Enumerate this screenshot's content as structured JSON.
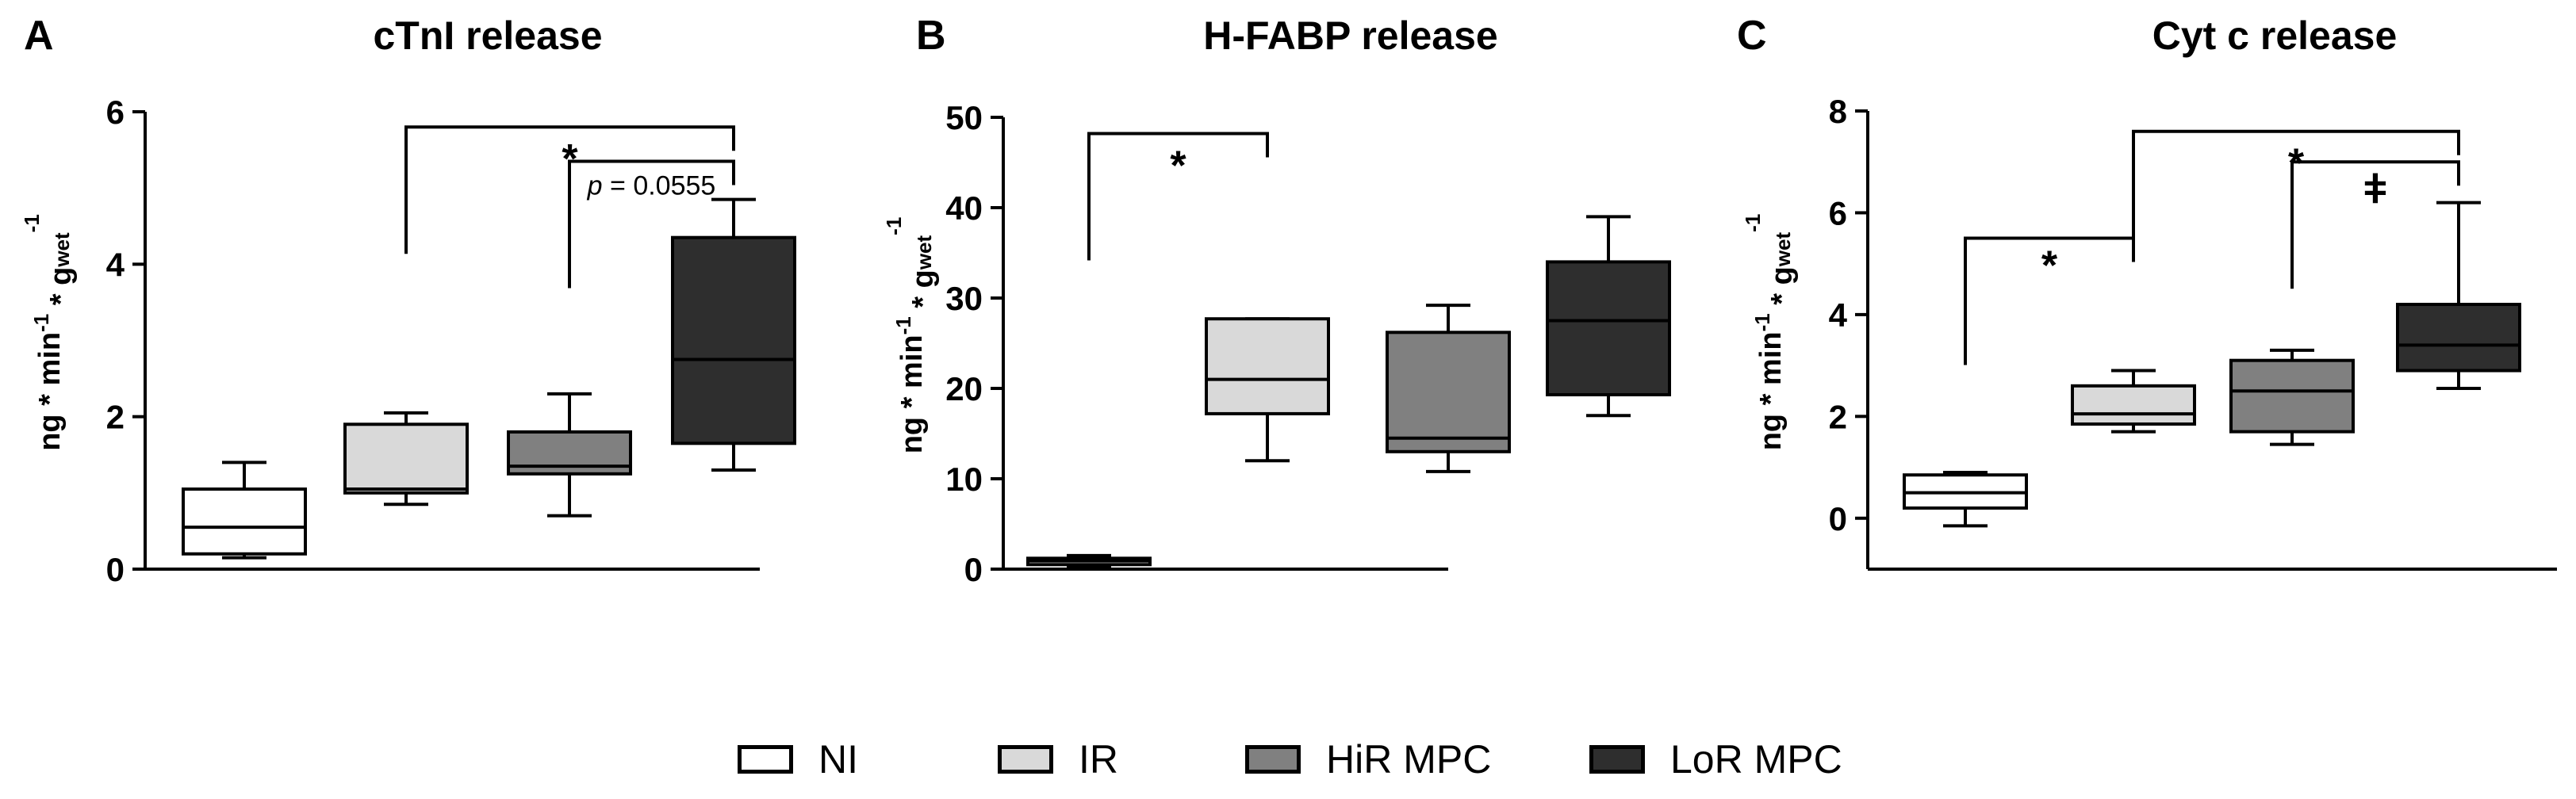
{
  "colors": {
    "NI": "#ffffff",
    "IR": "#d9d9d9",
    "HiR MPC": "#808080",
    "LoR MPC": "#2e2e2e",
    "ink": "#000000"
  },
  "legend": {
    "position": "bottom",
    "items": [
      {
        "label": "NI",
        "color": "#ffffff"
      },
      {
        "label": "IR",
        "color": "#d9d9d9"
      },
      {
        "label": "HiR MPC",
        "color": "#808080"
      },
      {
        "label": "LoR MPC",
        "color": "#2e2e2e"
      }
    ]
  },
  "chart_data": [
    {
      "type": "box",
      "panel": "A",
      "title": "cTnI release",
      "ylabel": "ng * min-1 * gwet-1",
      "ylim": [
        0,
        6
      ],
      "yticks": [
        0,
        2,
        4,
        6
      ],
      "categories": [
        "NI",
        "IR",
        "HiR MPC",
        "LoR MPC"
      ],
      "boxes": [
        {
          "group": "NI",
          "min": 0.15,
          "q1": 0.2,
          "median": 0.55,
          "q3": 1.05,
          "max": 1.4
        },
        {
          "group": "IR",
          "min": 0.85,
          "q1": 1.0,
          "median": 1.05,
          "q3": 1.9,
          "max": 2.05
        },
        {
          "group": "HiR MPC",
          "min": 0.7,
          "q1": 1.25,
          "median": 1.35,
          "q3": 1.8,
          "max": 2.3
        },
        {
          "group": "LoR MPC",
          "min": 1.3,
          "q1": 1.65,
          "median": 2.75,
          "q3": 4.35,
          "max": 4.85
        }
      ],
      "annotations": [
        {
          "from": "IR",
          "to": "LoR MPC",
          "y": 5.8,
          "label": "*"
        },
        {
          "from": "HiR MPC",
          "to": "LoR MPC",
          "y": 5.35,
          "label_prefix": "p",
          "label_value": " = 0.0555"
        }
      ]
    },
    {
      "type": "box",
      "panel": "B",
      "title": "H-FABP release",
      "ylabel": "ng * min-1 * gwet-1",
      "ylim": [
        0,
        50
      ],
      "yticks": [
        0,
        10,
        20,
        30,
        40,
        50
      ],
      "categories": [
        "NI",
        "IR",
        "HiR MPC",
        "LoR MPC"
      ],
      "boxes": [
        {
          "group": "NI",
          "min": 0.3,
          "q1": 0.5,
          "median": 0.9,
          "q3": 1.2,
          "max": 1.5
        },
        {
          "group": "IR",
          "min": 12,
          "q1": 17.2,
          "median": 21,
          "q3": 27.7,
          "max": 27.7
        },
        {
          "group": "HiR MPC",
          "min": 10.8,
          "q1": 13,
          "median": 14.5,
          "q3": 26.2,
          "max": 29.2
        },
        {
          "group": "LoR MPC",
          "min": 17,
          "q1": 19.3,
          "median": 27.5,
          "q3": 34,
          "max": 39
        }
      ],
      "annotations": [
        {
          "from": "NI",
          "to": "IR",
          "y": 48.2,
          "label": "*"
        }
      ]
    },
    {
      "type": "box",
      "panel": "C",
      "title": "Cyt c release",
      "ylabel": "ng * min-1 * gwet-1",
      "ylim": [
        -1,
        8
      ],
      "yticks": [
        0,
        2,
        4,
        6,
        8
      ],
      "categories": [
        "NI",
        "IR",
        "HiR MPC",
        "LoR MPC"
      ],
      "boxes": [
        {
          "group": "NI",
          "min": -0.15,
          "q1": 0.2,
          "median": 0.5,
          "q3": 0.85,
          "max": 0.9
        },
        {
          "group": "IR",
          "min": 1.7,
          "q1": 1.85,
          "median": 2.05,
          "q3": 2.6,
          "max": 2.9
        },
        {
          "group": "HiR MPC",
          "min": 1.45,
          "q1": 1.7,
          "median": 2.5,
          "q3": 3.1,
          "max": 3.3
        },
        {
          "group": "LoR MPC",
          "min": 2.55,
          "q1": 2.9,
          "median": 3.4,
          "q3": 4.2,
          "max": 6.2
        }
      ],
      "annotations": [
        {
          "from": "IR",
          "to": "LoR MPC",
          "y": 7.6,
          "label": "*"
        },
        {
          "from": "HiR MPC",
          "to": "LoR MPC",
          "y": 7.0,
          "label": "ǂ"
        },
        {
          "from": "NI",
          "to": "IR",
          "y": 5.5,
          "label": "*"
        }
      ]
    }
  ]
}
